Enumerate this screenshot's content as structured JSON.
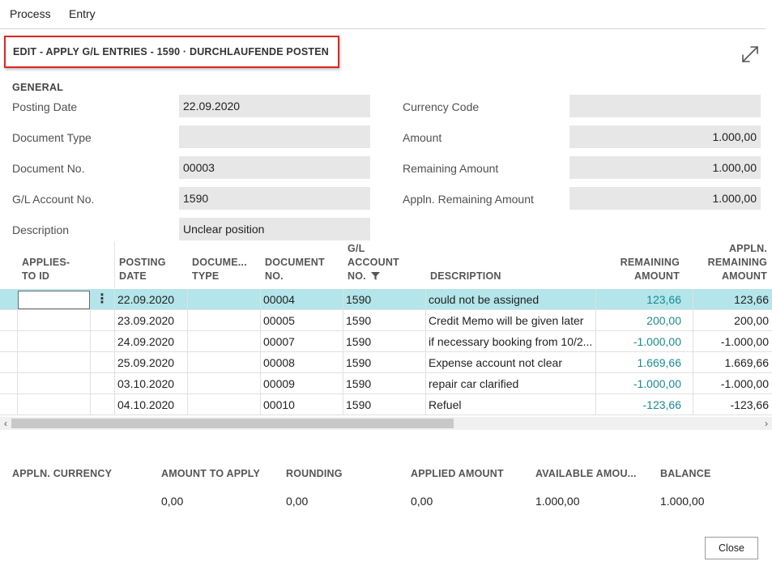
{
  "menu": {
    "process": "Process",
    "entry": "Entry"
  },
  "title": "EDIT - APPLY G/L ENTRIES - 1590 · DURCHLAUFENDE POSTEN",
  "general": {
    "section_title": "GENERAL",
    "posting_date_label": "Posting Date",
    "posting_date": "22.09.2020",
    "document_type_label": "Document Type",
    "document_type": "",
    "document_no_label": "Document No.",
    "document_no": "00003",
    "gl_account_no_label": "G/L Account No.",
    "gl_account_no": "1590",
    "description_label": "Description",
    "description": "Unclear position",
    "currency_code_label": "Currency Code",
    "currency_code": "",
    "amount_label": "Amount",
    "amount": "1.000,00",
    "remaining_amount_label": "Remaining Amount",
    "remaining_amount": "1.000,00",
    "appln_remaining_amount_label": "Appln. Remaining Amount",
    "appln_remaining_amount": "1.000,00"
  },
  "table": {
    "headers": {
      "applies_to_id_1": "APPLIES-",
      "applies_to_id_2": "TO ID",
      "posting_date_1": "POSTING",
      "posting_date_2": "DATE",
      "document_type_1": "DOCUME...",
      "document_type_2": "TYPE",
      "document_no_1": "DOCUMENT",
      "document_no_2": "NO.",
      "gl_account_1": "G/L",
      "gl_account_2": "ACCOUNT",
      "gl_account_3": "NO.",
      "description": "DESCRIPTION",
      "remaining_amount_1": "REMAINING",
      "remaining_amount_2": "AMOUNT",
      "appln_remaining_1": "APPLN.",
      "appln_remaining_2": "REMAINING",
      "appln_remaining_3": "AMOUNT"
    },
    "rows": [
      {
        "posting_date": "22.09.2020",
        "document_type": "",
        "document_no": "00004",
        "gl_account": "1590",
        "description": "could not be assigned",
        "remaining_amount": "123,66",
        "appln_remaining_amount": "123,66"
      },
      {
        "posting_date": "23.09.2020",
        "document_type": "",
        "document_no": "00005",
        "gl_account": "1590",
        "description": "Credit Memo will be given later",
        "remaining_amount": "200,00",
        "appln_remaining_amount": "200,00"
      },
      {
        "posting_date": "24.09.2020",
        "document_type": "",
        "document_no": "00007",
        "gl_account": "1590",
        "description": "if necessary booking from 10/2...",
        "remaining_amount": "-1.000,00",
        "appln_remaining_amount": "-1.000,00"
      },
      {
        "posting_date": "25.09.2020",
        "document_type": "",
        "document_no": "00008",
        "gl_account": "1590",
        "description": "Expense account not clear",
        "remaining_amount": "1.669,66",
        "appln_remaining_amount": "1.669,66"
      },
      {
        "posting_date": "03.10.2020",
        "document_type": "",
        "document_no": "00009",
        "gl_account": "1590",
        "description": "repair car clarified",
        "remaining_amount": "-1.000,00",
        "appln_remaining_amount": "-1.000,00"
      },
      {
        "posting_date": "04.10.2020",
        "document_type": "",
        "document_no": "00010",
        "gl_account": "1590",
        "description": "Refuel",
        "remaining_amount": "-123,66",
        "appln_remaining_amount": "-123,66"
      }
    ]
  },
  "footer": {
    "appln_currency_label": "APPLN. CURRENCY",
    "appln_currency": "",
    "amount_to_apply_label": "AMOUNT TO APPLY",
    "amount_to_apply": "0,00",
    "rounding_label": "ROUNDING",
    "rounding": "0,00",
    "applied_amount_label": "APPLIED AMOUNT",
    "applied_amount": "0,00",
    "available_amount_label": "AVAILABLE AMOU...",
    "available_amount": "1.000,00",
    "balance_label": "BALANCE",
    "balance": "1.000,00"
  },
  "close_label": "Close",
  "icons": {
    "expand": "expand-icon",
    "row_actions": "more-vertical-icon",
    "filter": "filter-icon",
    "scroll_left": "chevron-left-icon",
    "scroll_right": "chevron-right-icon"
  },
  "colors": {
    "selected_row": "#b3e5ea",
    "amount_link": "#1a8a91",
    "title_highlight": "#e02424",
    "field_bg": "#e7e7e7"
  }
}
